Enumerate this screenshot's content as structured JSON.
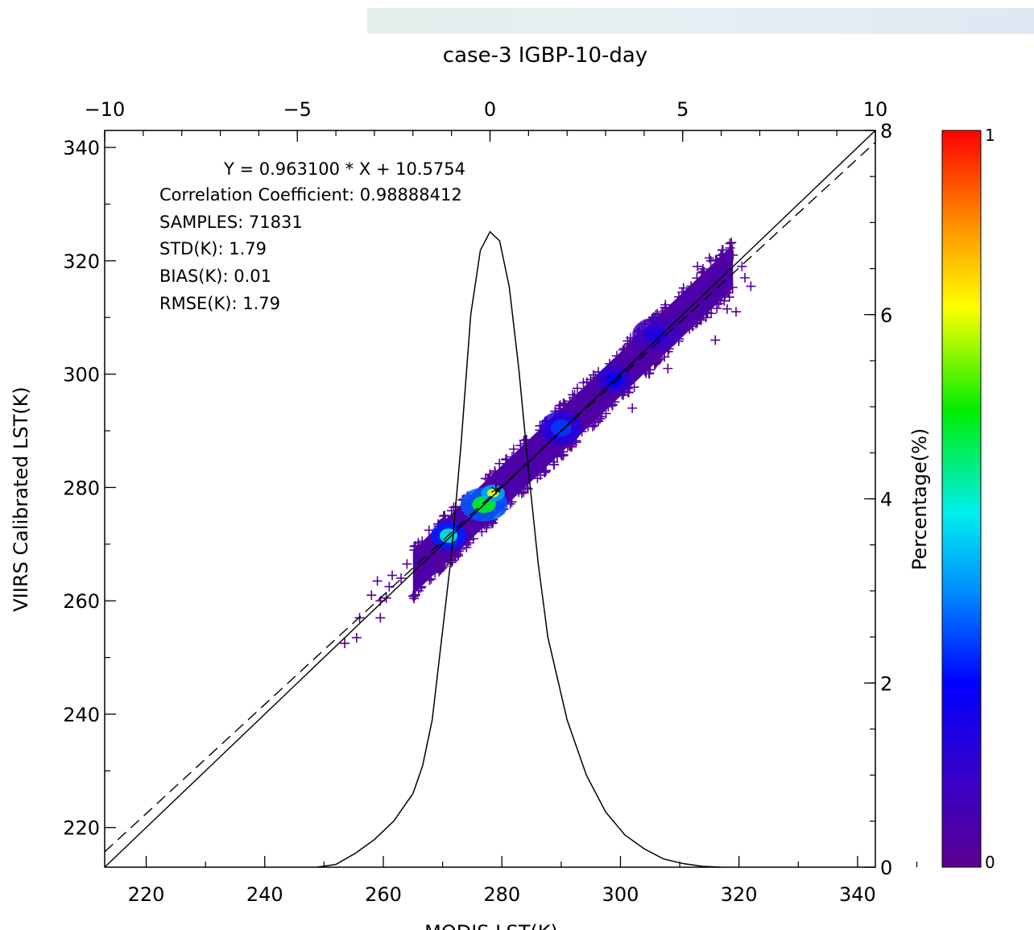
{
  "chart_data": {
    "type": "scatter",
    "title": "case-3 IGBP-10-day",
    "xlabel": "MODIS LST(K)",
    "ylabel": "VIIRS Calibrated LST(K)",
    "xlim": [
      213,
      343
    ],
    "ylim": [
      213,
      343
    ],
    "x_ticks": [
      220,
      240,
      260,
      280,
      300,
      320,
      340
    ],
    "y_ticks": [
      220,
      240,
      260,
      280,
      300,
      320,
      340
    ],
    "top_axis": {
      "range": [
        -10,
        10
      ],
      "ticks": [
        -10,
        -5,
        0,
        5,
        10
      ],
      "tick_labels": [
        "−10",
        "−5",
        "0",
        "5",
        "10"
      ]
    },
    "right_axis": {
      "range": [
        0,
        8
      ],
      "ticks": [
        0,
        2,
        4,
        6,
        8
      ]
    },
    "colorbar": {
      "label": "Percentage(%)",
      "min_label": "0",
      "max_label": "1",
      "range": [
        0,
        1
      ]
    },
    "annotations": [
      "Y = 0.963100 * X + 10.5754",
      "Correlation Coefficient: 0.98888412",
      "SAMPLES: 71831",
      "STD(K): 1.79",
      "BIAS(K): 0.01",
      "RMSE(K): 1.79"
    ],
    "fit": {
      "slope": 0.9631,
      "intercept": 10.5754,
      "style": "dashed"
    },
    "one_to_one": {
      "style": "solid"
    },
    "scatter_band": {
      "x_range": [
        253,
        320
      ],
      "samples": 71831
    },
    "scatter_points": [
      {
        "x": 253.5,
        "y": 252.5,
        "d": 0.02
      },
      {
        "x": 255.5,
        "y": 253.5,
        "d": 0.02
      },
      {
        "x": 256,
        "y": 257,
        "d": 0.02
      },
      {
        "x": 258,
        "y": 261,
        "d": 0.02
      },
      {
        "x": 259,
        "y": 263.5,
        "d": 0.02
      },
      {
        "x": 259.5,
        "y": 260,
        "d": 0.02
      },
      {
        "x": 260.5,
        "y": 260.5,
        "d": 0.02
      },
      {
        "x": 261,
        "y": 262.5,
        "d": 0.02
      },
      {
        "x": 261.5,
        "y": 264.5,
        "d": 0.02
      },
      {
        "x": 259.5,
        "y": 257,
        "d": 0.02
      },
      {
        "x": 263,
        "y": 264,
        "d": 0.02
      },
      {
        "x": 264,
        "y": 266.5,
        "d": 0.02
      },
      {
        "x": 313,
        "y": 319,
        "d": 0.02
      },
      {
        "x": 315,
        "y": 320.5,
        "d": 0.02
      },
      {
        "x": 317,
        "y": 319.5,
        "d": 0.02
      },
      {
        "x": 319,
        "y": 321,
        "d": 0.02
      },
      {
        "x": 320.5,
        "y": 319,
        "d": 0.02
      },
      {
        "x": 321,
        "y": 317,
        "d": 0.02
      },
      {
        "x": 322,
        "y": 315.5,
        "d": 0.02
      },
      {
        "x": 319.5,
        "y": 311,
        "d": 0.02
      },
      {
        "x": 318,
        "y": 311.5,
        "d": 0.02
      },
      {
        "x": 316,
        "y": 306,
        "d": 0.02
      },
      {
        "x": 308,
        "y": 301,
        "d": 0.02
      },
      {
        "x": 302,
        "y": 294,
        "d": 0.02
      },
      {
        "x": 295,
        "y": 292,
        "d": 0.02
      },
      {
        "x": 289,
        "y": 292,
        "d": 0.02
      },
      {
        "x": 284,
        "y": 287,
        "d": 0.02
      },
      {
        "x": 275,
        "y": 274,
        "d": 0.02
      },
      {
        "x": 270,
        "y": 267,
        "d": 0.02
      },
      {
        "x": 266,
        "y": 265,
        "d": 0.02
      }
    ],
    "density_clusters": [
      {
        "x": 271,
        "y": 271.5,
        "d": 0.5,
        "w": 3,
        "h": 2.5
      },
      {
        "x": 277,
        "y": 277,
        "d": 0.6,
        "w": 4,
        "h": 3
      },
      {
        "x": 278.5,
        "y": 279,
        "d": 0.75,
        "w": 2,
        "h": 1.5
      },
      {
        "x": 290,
        "y": 290.5,
        "d": 0.3,
        "w": 3.5,
        "h": 3
      },
      {
        "x": 299,
        "y": 299,
        "d": 0.25,
        "w": 3,
        "h": 2.5
      },
      {
        "x": 306,
        "y": 307,
        "d": 0.18,
        "w": 4,
        "h": 3
      }
    ],
    "histogram_curve": {
      "axes": "top-right",
      "x": [
        -4.5,
        -4,
        -3.5,
        -3,
        -2.5,
        -2,
        -1.75,
        -1.5,
        -1.25,
        -1,
        -0.75,
        -0.5,
        -0.25,
        0,
        0.25,
        0.5,
        0.75,
        1,
        1.25,
        1.5,
        2,
        2.5,
        3,
        3.5,
        4,
        4.5,
        5,
        5.5,
        6
      ],
      "y": [
        0,
        0.03,
        0.15,
        0.3,
        0.5,
        0.8,
        1.1,
        1.6,
        2.5,
        3.4,
        4.6,
        6.0,
        6.7,
        6.9,
        6.8,
        6.3,
        5.4,
        4.3,
        3.3,
        2.5,
        1.6,
        1.0,
        0.6,
        0.35,
        0.2,
        0.09,
        0.04,
        0.01,
        0
      ]
    },
    "markers": [
      {
        "x": 279,
        "y": 279,
        "symbol": "*"
      }
    ]
  }
}
